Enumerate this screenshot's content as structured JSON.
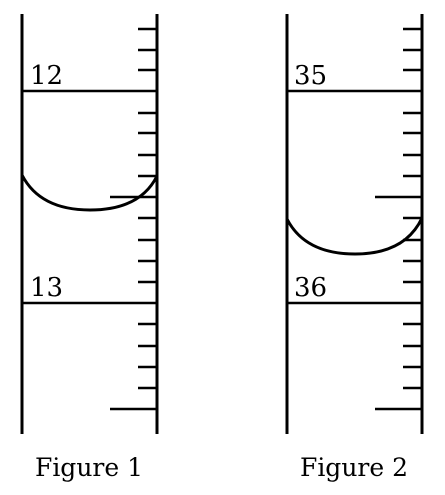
{
  "figures": [
    {
      "caption": "Figure 1",
      "labels": [
        "12",
        "13"
      ]
    },
    {
      "caption": "Figure 2",
      "labels": [
        "35",
        "36"
      ]
    }
  ]
}
